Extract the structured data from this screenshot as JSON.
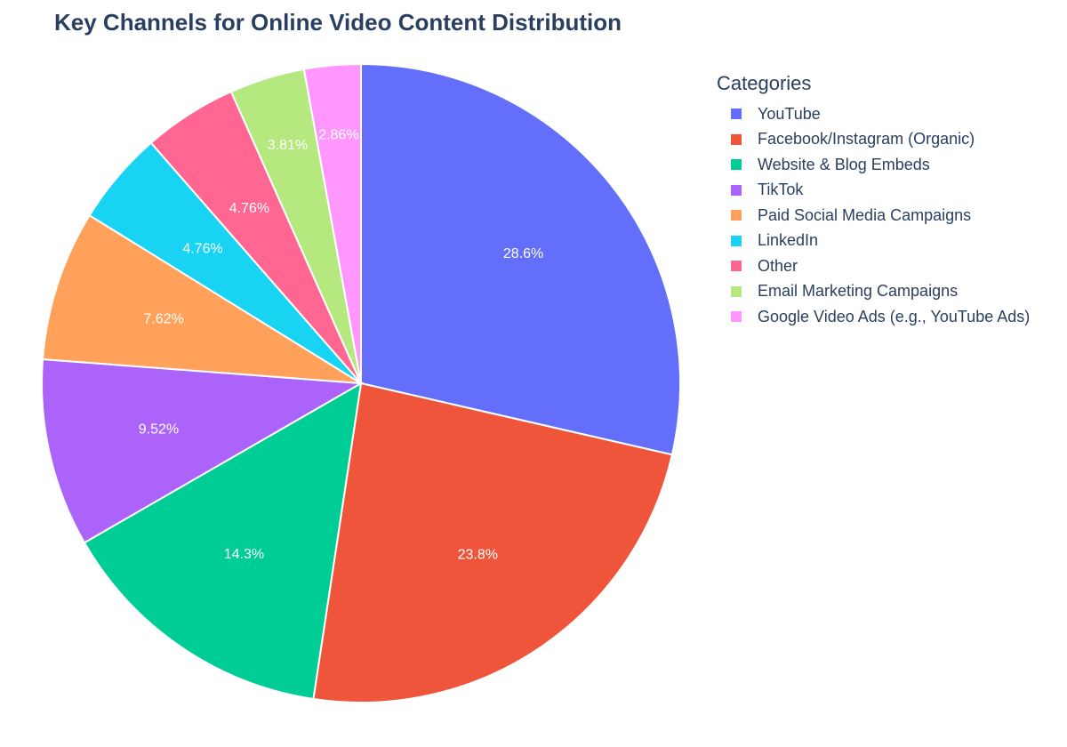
{
  "chart_data": {
    "type": "pie",
    "title": "Key Channels for Online Video Content Distribution",
    "legend_title": "Categories",
    "legend_position": "right",
    "sort": "descending",
    "direction": "clockwise",
    "slices": [
      {
        "label": "YouTube",
        "value": 28.6,
        "text": "28.6%",
        "color": "#636efa"
      },
      {
        "label": "Facebook/Instagram (Organic)",
        "value": 23.8,
        "text": "23.8%",
        "color": "#ef553b"
      },
      {
        "label": "Website & Blog Embeds",
        "value": 14.3,
        "text": "14.3%",
        "color": "#00cc96"
      },
      {
        "label": "TikTok",
        "value": 9.52,
        "text": "9.52%",
        "color": "#ab63fa"
      },
      {
        "label": "Paid Social Media Campaigns",
        "value": 7.62,
        "text": "7.62%",
        "color": "#ffa15a"
      },
      {
        "label": "LinkedIn",
        "value": 4.76,
        "text": "4.76%",
        "color": "#19d3f3"
      },
      {
        "label": "Other",
        "value": 4.76,
        "text": "4.76%",
        "color": "#ff6692"
      },
      {
        "label": "Email Marketing Campaigns",
        "value": 3.81,
        "text": "3.81%",
        "color": "#b6e880"
      },
      {
        "label": "Google Video Ads (e.g., YouTube Ads)",
        "value": 2.86,
        "text": "2.86%",
        "color": "#ff97ff"
      }
    ]
  }
}
